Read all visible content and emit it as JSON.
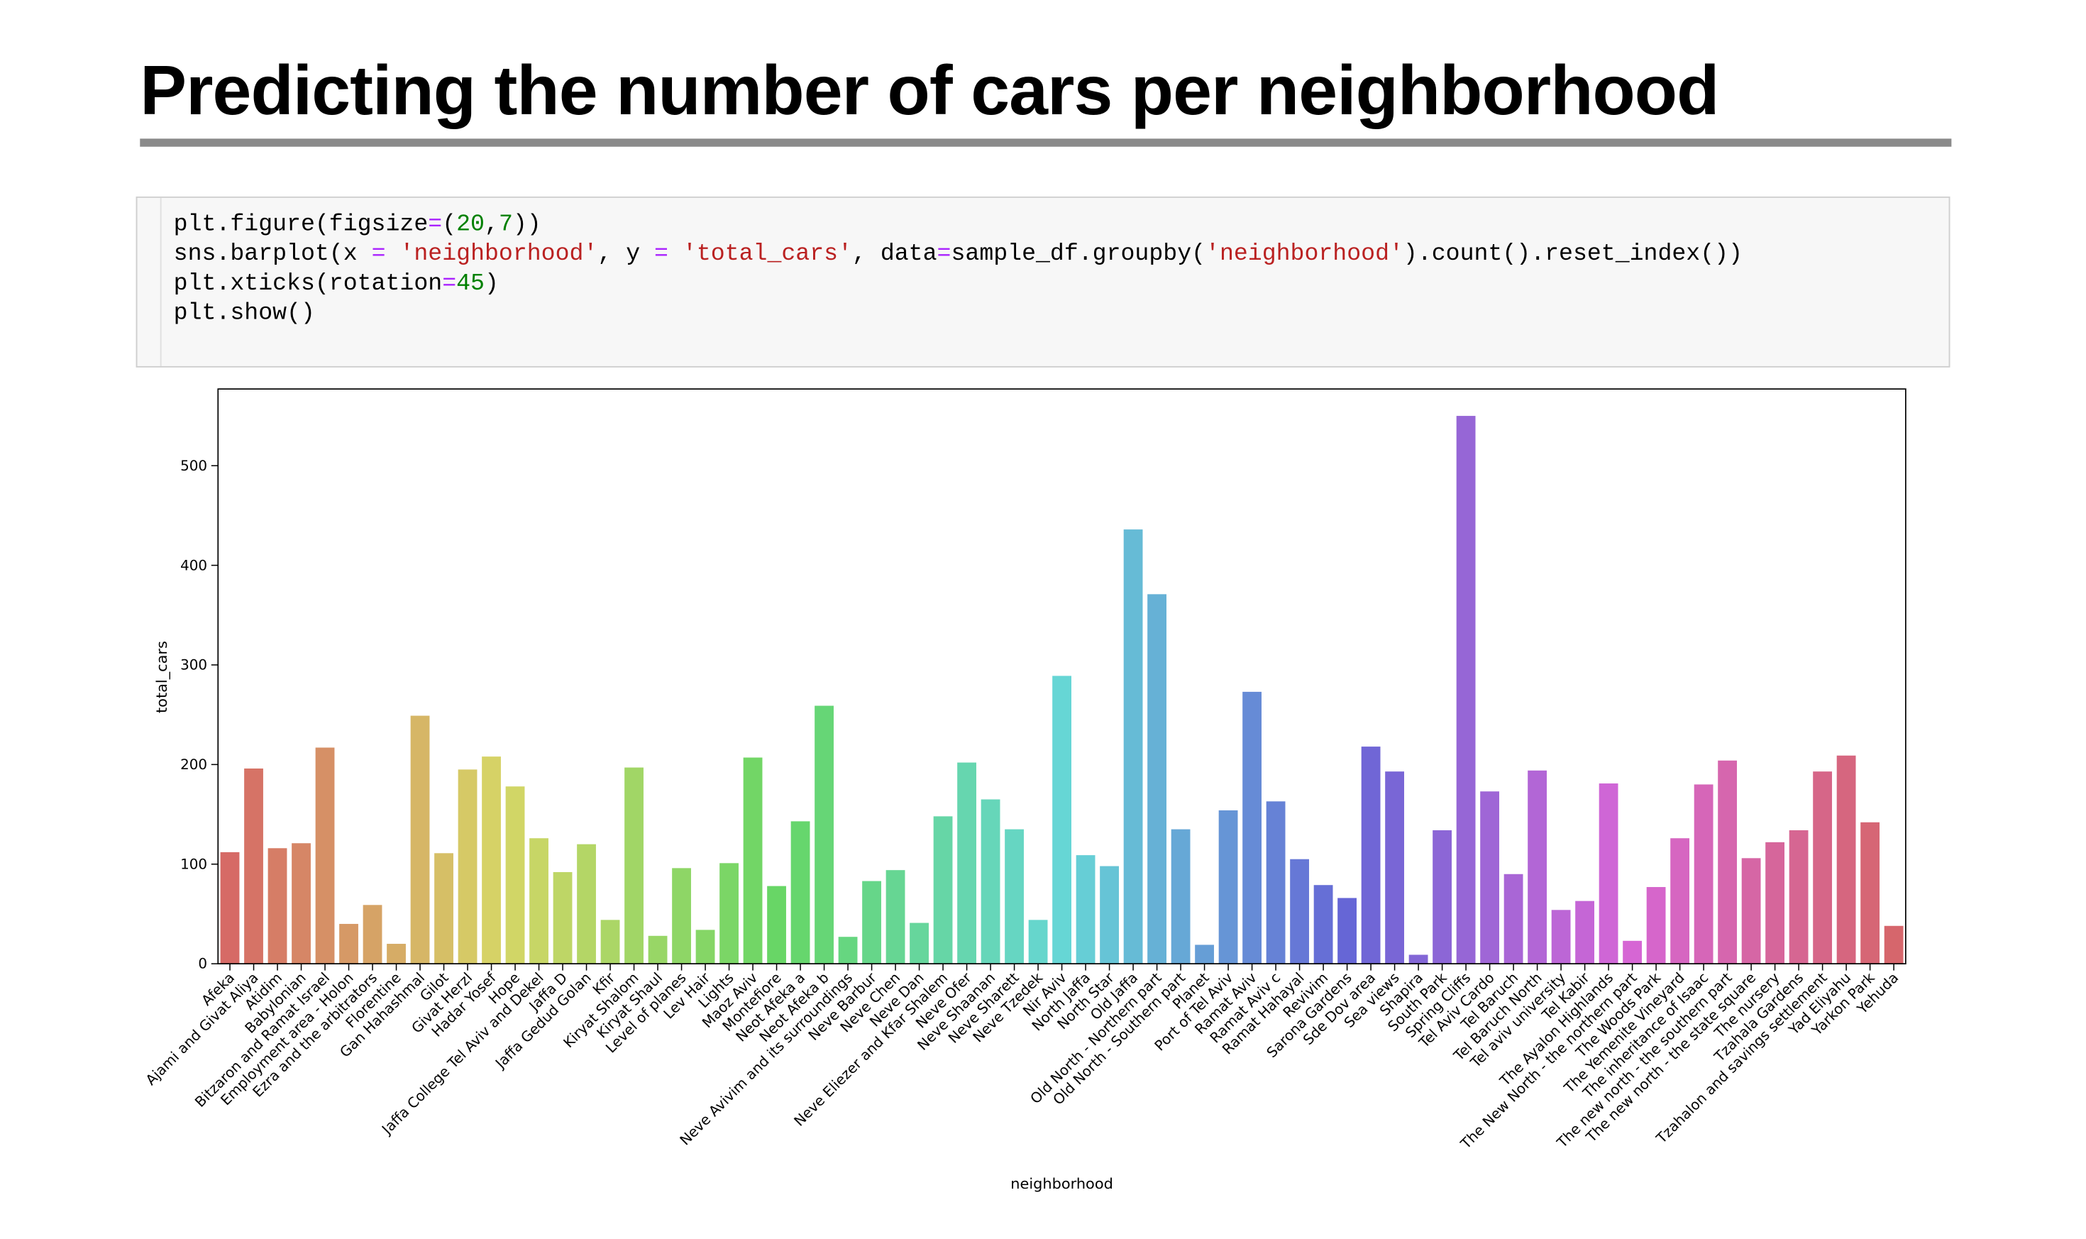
{
  "header": {
    "title": "Predicting the number of cars per neighborhood"
  },
  "code": [
    [
      {
        "text": "plt.figure(figsize",
        "color": "#000000"
      },
      {
        "text": "=",
        "color": "#aa22ff"
      },
      {
        "text": "(",
        "color": "#000000"
      },
      {
        "text": "20",
        "color": "#008000"
      },
      {
        "text": ",",
        "color": "#000000"
      },
      {
        "text": "7",
        "color": "#008000"
      },
      {
        "text": "))",
        "color": "#000000"
      }
    ],
    [
      {
        "text": "sns.barplot(x ",
        "color": "#000000"
      },
      {
        "text": "=",
        "color": "#aa22ff"
      },
      {
        "text": " ",
        "color": "#000000"
      },
      {
        "text": "'neighborhood'",
        "color": "#ba2121"
      },
      {
        "text": ", y ",
        "color": "#000000"
      },
      {
        "text": "=",
        "color": "#aa22ff"
      },
      {
        "text": " ",
        "color": "#000000"
      },
      {
        "text": "'total_cars'",
        "color": "#ba2121"
      },
      {
        "text": ", data",
        "color": "#000000"
      },
      {
        "text": "=",
        "color": "#aa22ff"
      },
      {
        "text": "sample_df.groupby(",
        "color": "#000000"
      },
      {
        "text": "'neighborhood'",
        "color": "#ba2121"
      },
      {
        "text": ").count().reset_index())",
        "color": "#000000"
      }
    ],
    [
      {
        "text": "plt.xticks(rotation",
        "color": "#000000"
      },
      {
        "text": "=",
        "color": "#aa22ff"
      },
      {
        "text": "45",
        "color": "#008000"
      },
      {
        "text": ")",
        "color": "#000000"
      }
    ],
    [
      {
        "text": "plt.show()",
        "color": "#000000"
      }
    ]
  ],
  "chart_data": {
    "type": "bar",
    "palette": "husl",
    "x_label": "neighborhood",
    "y_label": "total_cars",
    "categories": [
      "Afeka",
      "Ajami and Givat Aliya",
      "Atidim",
      "Babylonian",
      "Bitzaron and Ramat Israel",
      "Employment area - Holon",
      "Ezra and the arbitrators",
      "Florentine",
      "Gan Hahashmal",
      "Gilot",
      "Givat Herzl",
      "Hadar Yosef",
      "Hope",
      "Jaffa College Tel Aviv and Dekel",
      "Jaffa D",
      "Jaffa Gedud Golan",
      "Kfir",
      "Kiryat Shalom",
      "Kiryat Shaul",
      "Level of planes",
      "Lev Hair",
      "Lights",
      "Maoz Aviv",
      "Montefiore",
      "Neot Afeka a",
      "Neot Afeka b",
      "Neve Avivim and its surroundings",
      "Neve Barbur",
      "Neve Chen",
      "Neve Dan",
      "Neve Eliezer and Kfar Shalem",
      "Neve Ofer",
      "Neve Shaanan",
      "Neve Sharett",
      "Neve Tzedek",
      "Nir Aviv",
      "North Jaffa",
      "North Star",
      "Old Jaffa",
      "Old North - Northern part",
      "Old North - Southern part",
      "Planet",
      "Port of Tel Aviv",
      "Ramat Aviv",
      "Ramat Aviv c",
      "Ramat Hahayal",
      "Revivim",
      "Sarona Gardens",
      "Sde Dov area",
      "Sea views",
      "Shapira",
      "South Park",
      "Spring Cliffs",
      "Tel Aviv Cardo",
      "Tel Baruch",
      "Tel Baruch North",
      "Tel aviv university",
      "Tel Kabir",
      "The Ayalon Highlands",
      "The New North - the northern part",
      "The Woods Park",
      "The Yemenite Vineyard",
      "The inheritance of Isaac",
      "The new north - the southern part",
      "The new north - the state square",
      "The nursery",
      "Tzahala Gardens",
      "Tzahalon and savings settlement",
      "Yad Eliyahu",
      "Yarkon Park",
      "Yehuda"
    ],
    "values": [
      112,
      196,
      116,
      121,
      217,
      40,
      59,
      20,
      249,
      111,
      195,
      208,
      178,
      126,
      92,
      120,
      44,
      197,
      28,
      96,
      34,
      101,
      207,
      78,
      143,
      259,
      27,
      83,
      94,
      41,
      148,
      202,
      165,
      135,
      44,
      289,
      109,
      98,
      436,
      371,
      135,
      19,
      154,
      273,
      163,
      105,
      79,
      66,
      218,
      193,
      9,
      134,
      550,
      173,
      90,
      194,
      54,
      63,
      181,
      23,
      77,
      126,
      180,
      204,
      106,
      122,
      134,
      193,
      209,
      142,
      38
    ],
    "ylim": [
      0,
      577
    ],
    "yticks": [
      0,
      100,
      200,
      300,
      400,
      500
    ],
    "grid": false
  }
}
